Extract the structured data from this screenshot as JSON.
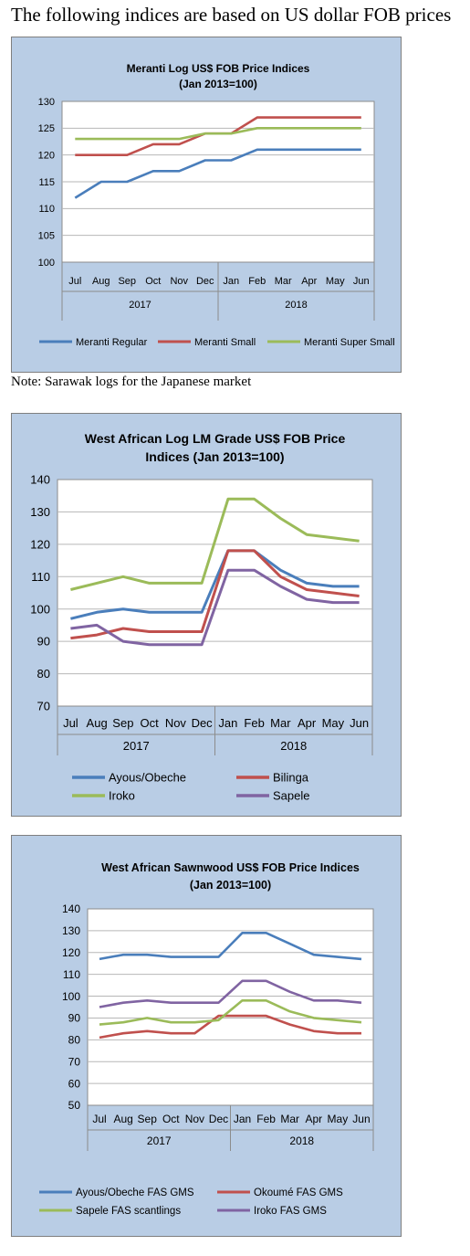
{
  "heading": "The following indices are based on US dollar FOB prices",
  "note": "Note: Sarawak logs for the Japanese market",
  "colors": {
    "blue": "#4a7ebb",
    "red": "#c0504d",
    "green": "#9bbb59",
    "purple": "#8064a2",
    "panel": "#b9cde5",
    "grid": "#b7b7b7"
  },
  "chart_data": [
    {
      "type": "line",
      "title": "Meranti Log US$ FOB Price Indices",
      "subtitle": "(Jan 2013=100)",
      "categories": [
        "Jul",
        "Aug",
        "Sep",
        "Oct",
        "Nov",
        "Dec",
        "Jan",
        "Feb",
        "Mar",
        "Apr",
        "May",
        "Jun"
      ],
      "year_groups": [
        {
          "label": "2017",
          "count": 6
        },
        {
          "label": "2018",
          "count": 6
        }
      ],
      "ylim": [
        100,
        130
      ],
      "yticks": [
        100,
        105,
        110,
        115,
        120,
        125,
        130
      ],
      "grid": true,
      "legend_position": "bottom",
      "series": [
        {
          "name": "Meranti Regular",
          "color": "#4a7ebb",
          "values": [
            112,
            115,
            115,
            117,
            117,
            119,
            119,
            121,
            121,
            121,
            121,
            121
          ]
        },
        {
          "name": "Meranti Small",
          "color": "#c0504d",
          "values": [
            120,
            120,
            120,
            122,
            122,
            124,
            124,
            127,
            127,
            127,
            127,
            127
          ]
        },
        {
          "name": "Meranti Super Small",
          "color": "#9bbb59",
          "values": [
            123,
            123,
            123,
            123,
            123,
            124,
            124,
            125,
            125,
            125,
            125,
            125
          ]
        }
      ]
    },
    {
      "type": "line",
      "title": "West African Log LM Grade US$ FOB Price",
      "subtitle": "Indices (Jan 2013=100)",
      "categories": [
        "Jul",
        "Aug",
        "Sep",
        "Oct",
        "Nov",
        "Dec",
        "Jan",
        "Feb",
        "Mar",
        "Apr",
        "May",
        "Jun"
      ],
      "year_groups": [
        {
          "label": "2017",
          "count": 6
        },
        {
          "label": "2018",
          "count": 6
        }
      ],
      "ylim": [
        70,
        140
      ],
      "yticks": [
        70,
        80,
        90,
        100,
        110,
        120,
        130,
        140
      ],
      "grid": true,
      "legend_position": "bottom",
      "series": [
        {
          "name": "Ayous/Obeche",
          "color": "#4a7ebb",
          "values": [
            97,
            99,
            100,
            99,
            99,
            99,
            118,
            118,
            112,
            108,
            107,
            107
          ]
        },
        {
          "name": "Bilinga",
          "color": "#c0504d",
          "values": [
            91,
            92,
            94,
            93,
            93,
            93,
            118,
            118,
            110,
            106,
            105,
            104
          ]
        },
        {
          "name": "Iroko",
          "color": "#9bbb59",
          "values": [
            106,
            108,
            110,
            108,
            108,
            108,
            134,
            134,
            128,
            123,
            122,
            121
          ]
        },
        {
          "name": "Sapele",
          "color": "#8064a2",
          "values": [
            94,
            95,
            90,
            89,
            89,
            89,
            112,
            112,
            107,
            103,
            102,
            102
          ]
        }
      ]
    },
    {
      "type": "line",
      "title": "West African Sawnwood US$ FOB Price Indices",
      "subtitle": "(Jan 2013=100)",
      "categories": [
        "Jul",
        "Aug",
        "Sep",
        "Oct",
        "Nov",
        "Dec",
        "Jan",
        "Feb",
        "Mar",
        "Apr",
        "May",
        "Jun"
      ],
      "year_groups": [
        {
          "label": "2017",
          "count": 6
        },
        {
          "label": "2018",
          "count": 6
        }
      ],
      "ylim": [
        50,
        140
      ],
      "yticks": [
        50,
        60,
        70,
        80,
        90,
        100,
        110,
        120,
        130,
        140
      ],
      "grid": true,
      "legend_position": "bottom",
      "series": [
        {
          "name": "Ayous/Obeche FAS GMS",
          "color": "#4a7ebb",
          "values": [
            117,
            119,
            119,
            118,
            118,
            118,
            129,
            129,
            124,
            119,
            118,
            117
          ]
        },
        {
          "name": "Okoumé FAS GMS",
          "color": "#c0504d",
          "values": [
            81,
            83,
            84,
            83,
            83,
            91,
            91,
            91,
            87,
            84,
            83,
            83
          ]
        },
        {
          "name": "Sapele FAS scantlings",
          "color": "#9bbb59",
          "values": [
            87,
            88,
            90,
            88,
            88,
            89,
            98,
            98,
            93,
            90,
            89,
            88
          ]
        },
        {
          "name": "Iroko FAS GMS",
          "color": "#8064a2",
          "values": [
            95,
            97,
            98,
            97,
            97,
            97,
            107,
            107,
            102,
            98,
            98,
            97
          ]
        }
      ]
    }
  ]
}
